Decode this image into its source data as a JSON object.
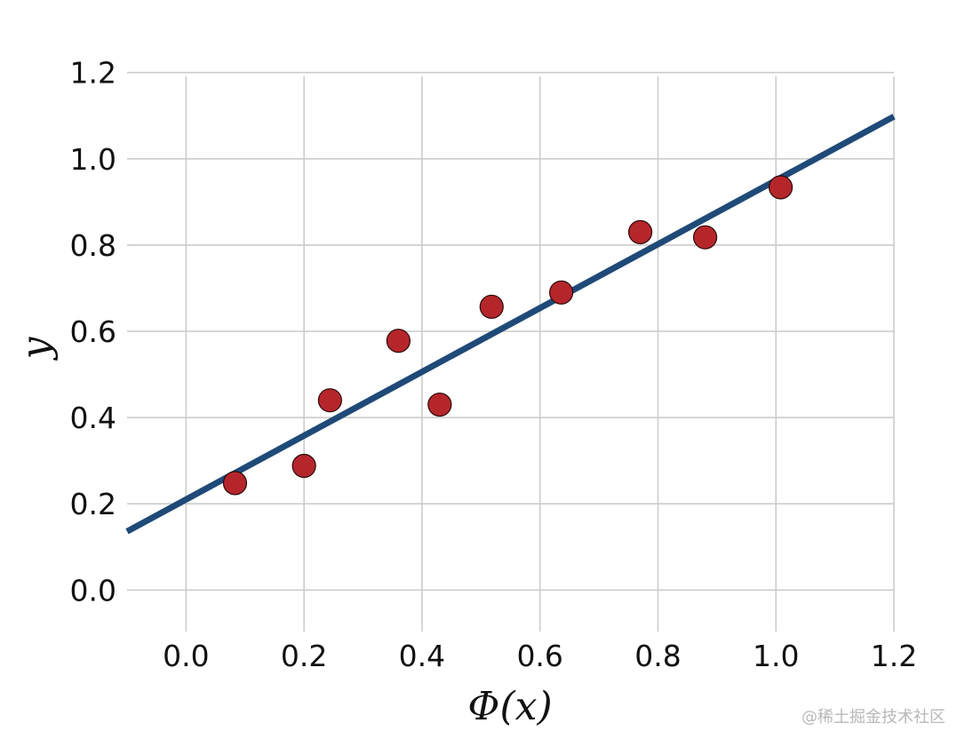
{
  "chart_data": {
    "type": "scatter",
    "title": "",
    "xlabel": "Φ(x)",
    "ylabel": "y",
    "xlim": [
      -0.1,
      1.2
    ],
    "ylim": [
      -0.09,
      1.22
    ],
    "x_ticks": [
      "0.0",
      "0.2",
      "0.4",
      "0.6",
      "0.8",
      "1.0",
      "1.2"
    ],
    "y_ticks": [
      "0.0",
      "0.2",
      "0.4",
      "0.6",
      "0.8",
      "1.0",
      "1.2"
    ],
    "grid": true,
    "legend": "none",
    "series": [
      {
        "type": "scatter",
        "color": "#b5262b",
        "x": [
          0.083,
          0.2,
          0.244,
          0.36,
          0.43,
          0.518,
          0.636,
          0.77,
          0.88,
          1.008
        ],
        "y": [
          0.248,
          0.288,
          0.44,
          0.578,
          0.43,
          0.657,
          0.69,
          0.83,
          0.818,
          0.934
        ]
      },
      {
        "type": "line",
        "color": "#1f4a78",
        "slope": 0.74,
        "intercept": 0.21
      }
    ]
  },
  "watermark": "@稀土掘金技术社区"
}
